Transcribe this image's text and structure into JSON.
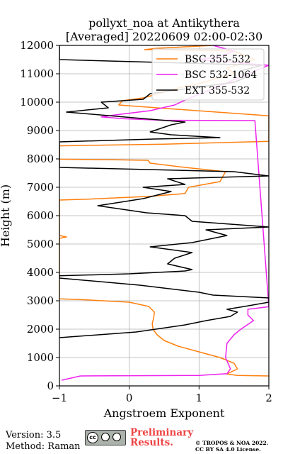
{
  "chart_data": {
    "type": "line",
    "title": "pollyxt_noa at Antikythera",
    "subtitle": "[Averaged] 20220609 02:00-02:30",
    "xlabel": "Angstroem Exponent",
    "ylabel": "Height (m)",
    "xlim": [
      -1,
      2
    ],
    "ylim": [
      0,
      12000
    ],
    "x_ticks": [
      -1,
      0,
      1,
      2
    ],
    "y_ticks": [
      0,
      1000,
      2000,
      3000,
      4000,
      5000,
      6000,
      7000,
      8000,
      9000,
      10000,
      11000,
      12000
    ],
    "grid": true,
    "legend_position": "top-right",
    "series": [
      {
        "name": "BSC 355-532",
        "color": "#ff7f0e",
        "points": [
          [
            2.0,
            350
          ],
          [
            1.55,
            370
          ],
          [
            1.4,
            420
          ],
          [
            1.55,
            600
          ],
          [
            1.5,
            800
          ],
          [
            1.3,
            1000
          ],
          [
            1.0,
            1200
          ],
          [
            0.7,
            1400
          ],
          [
            0.5,
            1600
          ],
          [
            0.4,
            1800
          ],
          [
            0.34,
            2000
          ],
          [
            0.33,
            2200
          ],
          [
            0.35,
            2400
          ],
          [
            0.36,
            2600
          ],
          [
            0.28,
            2800
          ],
          [
            0.0,
            2950
          ],
          [
            -0.6,
            3030
          ],
          [
            -1.0,
            3070
          ],
          [
            -1.0,
            5200
          ],
          [
            -0.9,
            5250
          ],
          [
            -1.0,
            5300
          ],
          [
            -1.0,
            6550
          ],
          [
            -0.6,
            6580
          ],
          [
            0.3,
            6680
          ],
          [
            0.8,
            6780
          ],
          [
            0.85,
            7000
          ],
          [
            1.3,
            7200
          ],
          [
            1.38,
            7550
          ],
          [
            0.8,
            7700
          ],
          [
            0.3,
            7850
          ],
          [
            0.27,
            7950
          ],
          [
            -0.2,
            7970
          ],
          [
            -1.0,
            7990
          ],
          [
            -1.0,
            8460
          ],
          [
            0.5,
            8520
          ],
          [
            2.0,
            8620
          ],
          [
            2.0,
            9520
          ],
          [
            0.4,
            9800
          ],
          [
            -0.15,
            9900
          ],
          [
            -0.1,
            10050
          ],
          [
            0.2,
            10150
          ],
          [
            0.5,
            10350
          ],
          [
            0.7,
            10500
          ],
          [
            1.0,
            10650
          ],
          [
            1.2,
            10800
          ],
          [
            1.5,
            11000
          ],
          [
            1.4,
            11200
          ],
          [
            1.8,
            11500
          ],
          [
            1.5,
            11800
          ],
          [
            0.4,
            11850
          ],
          [
            0.22,
            11850
          ],
          [
            0.4,
            11900
          ],
          [
            1.2,
            12000
          ]
        ]
      },
      {
        "name": "BSC 532-1064",
        "color": "#ee22ee",
        "points": [
          [
            -0.97,
            200
          ],
          [
            -0.7,
            350
          ],
          [
            1.0,
            370
          ],
          [
            1.4,
            430
          ],
          [
            1.45,
            600
          ],
          [
            1.38,
            1000
          ],
          [
            1.4,
            1500
          ],
          [
            1.5,
            1800
          ],
          [
            1.6,
            2000
          ],
          [
            1.78,
            2300
          ],
          [
            1.7,
            2500
          ],
          [
            1.7,
            2700
          ],
          [
            2.0,
            2790
          ],
          [
            1.8,
            9350
          ],
          [
            0.5,
            9360
          ],
          [
            -0.1,
            9420
          ],
          [
            -0.4,
            9480
          ],
          [
            -0.2,
            9550
          ],
          [
            0.3,
            9700
          ],
          [
            0.65,
            9900
          ],
          [
            0.78,
            10050
          ],
          [
            2.0,
            11300
          ],
          [
            1.0,
            11500
          ],
          [
            1.3,
            11600
          ],
          [
            1.5,
            11800
          ],
          [
            1.2,
            12000
          ]
        ]
      },
      {
        "name": "EXT 355-532",
        "color": "#000000",
        "points": [
          [
            -1.0,
            1700
          ],
          [
            0.1,
            1900
          ],
          [
            0.8,
            2150
          ],
          [
            1.1,
            2300
          ],
          [
            1.45,
            2450
          ],
          [
            1.55,
            2600
          ],
          [
            1.4,
            2700
          ],
          [
            1.65,
            2800
          ],
          [
            2.0,
            2950
          ],
          [
            2.0,
            3100
          ],
          [
            1.2,
            3200
          ],
          [
            1.0,
            3300
          ],
          [
            0.15,
            3550
          ],
          [
            -1.0,
            3800
          ],
          [
            -1.0,
            3880
          ],
          [
            0.0,
            3950
          ],
          [
            0.8,
            4050
          ],
          [
            0.9,
            4100
          ],
          [
            0.55,
            4300
          ],
          [
            0.65,
            4500
          ],
          [
            0.9,
            4700
          ],
          [
            0.3,
            4900
          ],
          [
            0.9,
            5050
          ],
          [
            1.4,
            5300
          ],
          [
            1.1,
            5500
          ],
          [
            2.0,
            5600
          ],
          [
            0.9,
            5800
          ],
          [
            0.8,
            6000
          ],
          [
            0.25,
            6100
          ],
          [
            -0.45,
            6350
          ],
          [
            0.2,
            6600
          ],
          [
            0.6,
            6850
          ],
          [
            0.2,
            7000
          ],
          [
            0.8,
            7100
          ],
          [
            0.55,
            7300
          ],
          [
            2.0,
            7400
          ],
          [
            1.5,
            7550
          ],
          [
            -1.0,
            7700
          ],
          [
            -1.0,
            8600
          ],
          [
            0.35,
            8700
          ],
          [
            1.3,
            8750
          ],
          [
            0.6,
            8850
          ],
          [
            0.3,
            8950
          ],
          [
            0.6,
            9200
          ],
          [
            0.8,
            9300
          ],
          [
            0.3,
            9400
          ],
          [
            -0.9,
            9650
          ],
          [
            -0.3,
            9800
          ],
          [
            -0.4,
            10000
          ],
          [
            0.2,
            10100
          ],
          [
            0.3,
            10300
          ],
          [
            1.5,
            10700
          ],
          [
            1.7,
            10900
          ],
          [
            1.6,
            11100
          ],
          [
            1.9,
            11300
          ],
          [
            -1.0,
            11500
          ],
          [
            -1.0,
            12000
          ]
        ]
      }
    ]
  },
  "footer": {
    "version": "Version: 3.5",
    "method": "Method: Raman",
    "cc_icon": "creative-commons-by-sa-badge",
    "prelim_line1": "Preliminary",
    "prelim_line2": "Results.",
    "copyright_line1": "© TROPOS & NOA 2022.",
    "copyright_line2": "CC BY SA 4.0 License."
  }
}
